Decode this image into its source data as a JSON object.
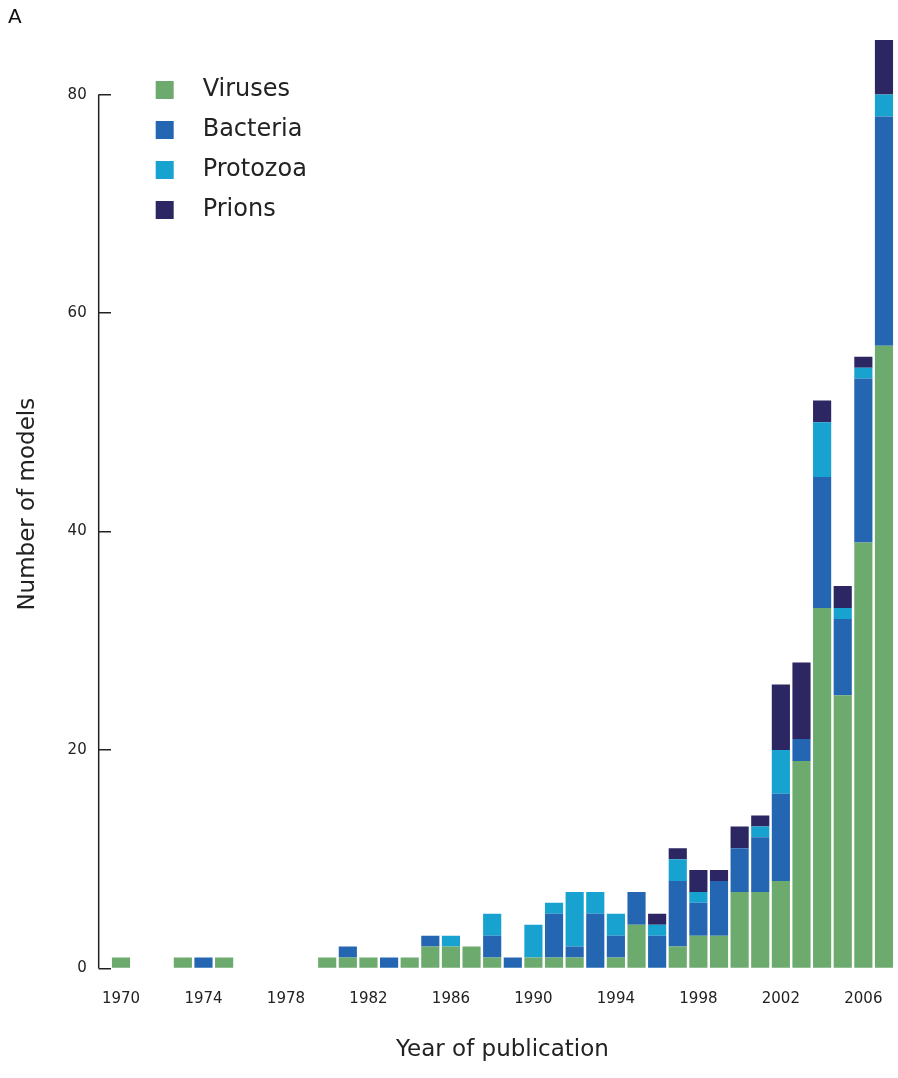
{
  "chart_data": {
    "type": "bar",
    "stacked": true,
    "annotations": [
      "A"
    ],
    "xlabel": "Year of publication",
    "ylabel": "Number of models",
    "categories": [
      "1970",
      null,
      null,
      null,
      "1974",
      null,
      null,
      null,
      "1978",
      null,
      null,
      null,
      "1982",
      null,
      null,
      null,
      "1986",
      null,
      null,
      null,
      "1990",
      null,
      null,
      null,
      "1994",
      null,
      null,
      null,
      "1998",
      null,
      null,
      null,
      "2002",
      null,
      null,
      null,
      "2006",
      null
    ],
    "series": [
      {
        "name": "Viruses",
        "color": "#6daa6e",
        "values": [
          1,
          0,
          0,
          1,
          0,
          1,
          0,
          0,
          0,
          0,
          1,
          1,
          1,
          0,
          1,
          2,
          2,
          2,
          1,
          0,
          1,
          1,
          1,
          0,
          1,
          4,
          0,
          2,
          3,
          3,
          7,
          7,
          8,
          19,
          33,
          25,
          39,
          57
        ]
      },
      {
        "name": "Bacteria",
        "color": "#2566b2",
        "values": [
          0,
          0,
          0,
          0,
          1,
          0,
          0,
          0,
          0,
          0,
          0,
          1,
          0,
          1,
          0,
          1,
          0,
          0,
          2,
          1,
          0,
          4,
          1,
          5,
          2,
          3,
          3,
          6,
          3,
          5,
          4,
          5,
          8,
          2,
          12,
          7,
          15,
          21
        ]
      },
      {
        "name": "Protozoa",
        "color": "#18a2d0",
        "values": [
          0,
          0,
          0,
          0,
          0,
          0,
          0,
          0,
          0,
          0,
          0,
          0,
          0,
          0,
          0,
          0,
          1,
          0,
          2,
          0,
          3,
          1,
          5,
          2,
          2,
          0,
          1,
          2,
          1,
          0,
          0,
          1,
          4,
          0,
          5,
          1,
          1,
          2
        ]
      },
      {
        "name": "Prions",
        "color": "#2c2663",
        "values": [
          0,
          0,
          0,
          0,
          0,
          0,
          0,
          0,
          0,
          0,
          0,
          0,
          0,
          0,
          0,
          0,
          0,
          0,
          0,
          0,
          0,
          0,
          0,
          0,
          0,
          0,
          1,
          1,
          2,
          1,
          2,
          1,
          6,
          7,
          2,
          2,
          1,
          5
        ]
      }
    ],
    "ylim": [
      0,
      85
    ],
    "yticks": [
      0,
      20,
      40,
      60,
      80
    ],
    "grid": false,
    "legend": "top left"
  }
}
